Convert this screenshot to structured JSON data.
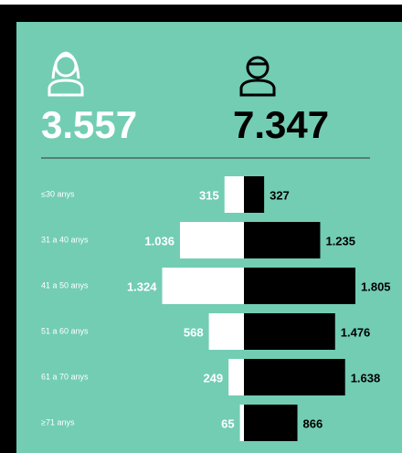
{
  "chart_data": {
    "type": "pyramid",
    "categories": [
      "≤30 anys",
      "31 a 40 anys",
      "41 a 50 anys",
      "51 a 60 anys",
      "61 a 70 anys",
      "≥71 anys"
    ],
    "series": [
      {
        "total": "3.557",
        "color": "#ffffff",
        "values": [
          315,
          1036,
          1324,
          568,
          249,
          65
        ],
        "value_labels": [
          "315",
          "1.036",
          "1.324",
          "568",
          "249",
          "65"
        ]
      },
      {
        "total": "7.347",
        "color": "#000000",
        "values": [
          327,
          1235,
          1805,
          1476,
          1638,
          866
        ],
        "value_labels": [
          "327",
          "1.235",
          "1.805",
          "1.476",
          "1.638",
          "866"
        ]
      }
    ]
  }
}
